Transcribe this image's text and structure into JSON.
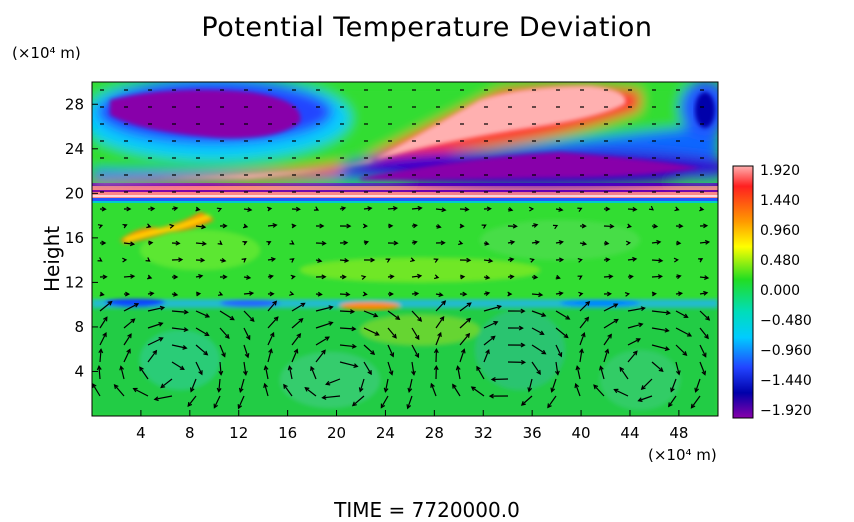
{
  "chart_data": {
    "type": "heatmap",
    "title": "Potential Temperature Deviation",
    "ylabel": "Height",
    "y_unit": "(×10⁴ m)",
    "x_unit": "(×10⁴ m)",
    "xlim": [
      0,
      51.2
    ],
    "ylim": [
      0,
      30
    ],
    "x_ticks": [
      "4",
      "8",
      "12",
      "16",
      "20",
      "24",
      "28",
      "32",
      "36",
      "40",
      "44",
      "48"
    ],
    "y_ticks": [
      "4",
      "8",
      "12",
      "16",
      "20",
      "24",
      "28"
    ],
    "colorbar": {
      "labels": [
        "1.920",
        "1.440",
        "0.960",
        "0.480",
        "0.000",
        "−0.480",
        "−0.960",
        "−1.440",
        "−1.920"
      ],
      "range": [
        -1.92,
        1.92
      ]
    },
    "footer": "TIME  =  7720000.0"
  }
}
